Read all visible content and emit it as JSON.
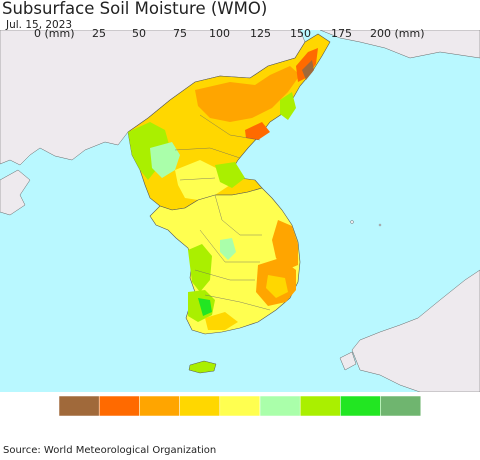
{
  "title": "Subsurface Soil Moisture (WMO)",
  "date": "Jul. 15, 2023",
  "source": "Source: World Meteorological Organization",
  "legend": {
    "unit": "(mm)",
    "first_label": "0 (mm)",
    "last_label": "200 (mm)",
    "labels": [
      "25",
      "50",
      "75",
      "100",
      "125",
      "150",
      "175"
    ],
    "colors": [
      "#a0693a",
      "#ff6a00",
      "#ffa500",
      "#ffd700",
      "#ffff50",
      "#aaffaa",
      "#aaef00",
      "#22e622",
      "#6fb56f"
    ]
  },
  "map_colors": {
    "sea": "#b9f8ff",
    "land_outside": "#eeeaee",
    "border": "#555555"
  }
}
